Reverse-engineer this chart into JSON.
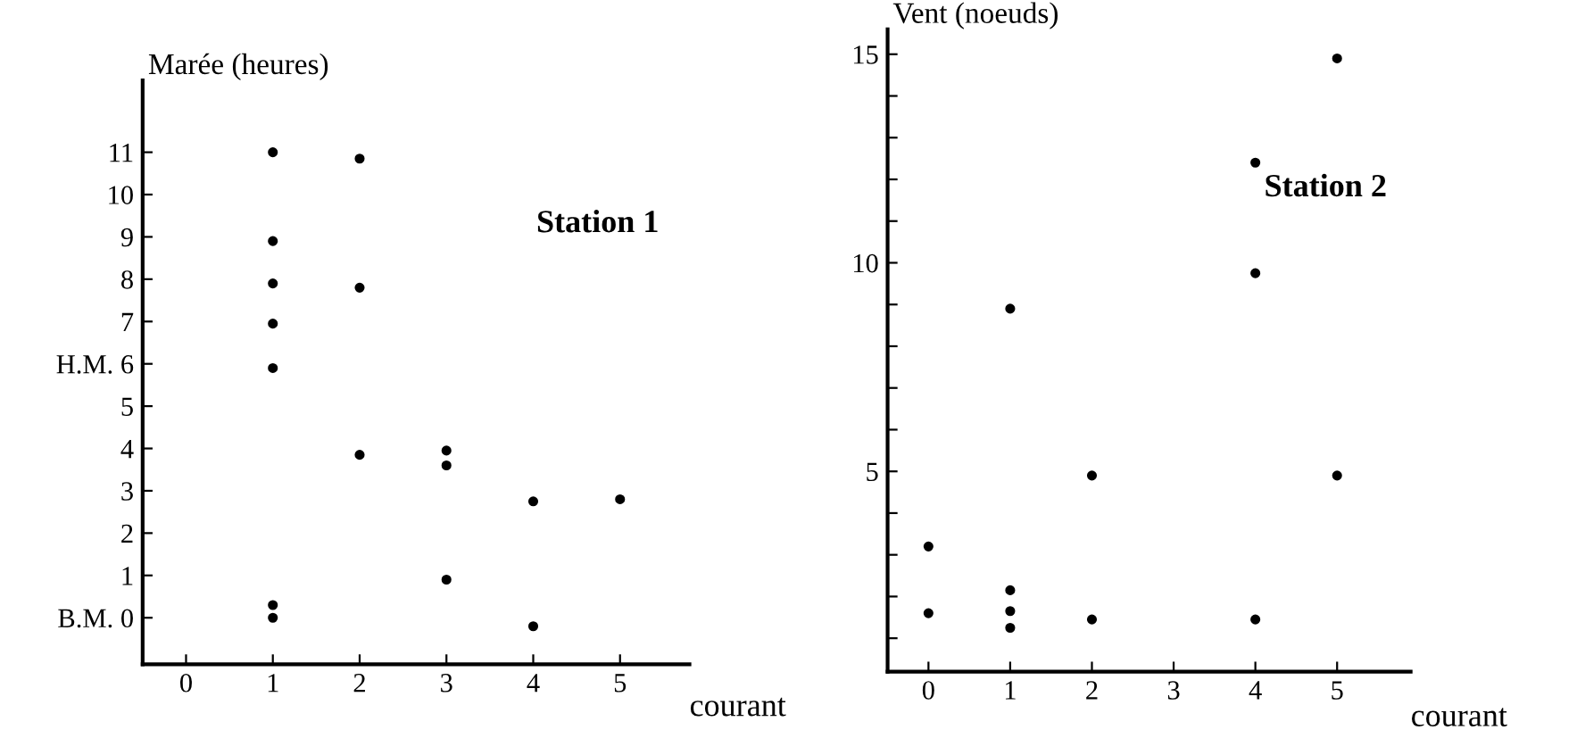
{
  "chart_data": [
    {
      "type": "scatter",
      "ylabel": "Marée (heures)",
      "xlabel": "courant",
      "annotations": [
        "Station 1"
      ],
      "marker": "circle",
      "grid": false,
      "xlim": [
        -0.5,
        5.8
      ],
      "xticks": [
        0,
        1,
        2,
        3,
        4,
        5
      ],
      "ylim": [
        -1.1,
        12.7
      ],
      "yticks": [
        {
          "value": 0,
          "label": "B.M. 0"
        },
        1,
        2,
        3,
        4,
        5,
        {
          "value": 6,
          "label": "H.M. 6"
        },
        7,
        8,
        9,
        10,
        11
      ],
      "series": [
        {
          "color": "#000000",
          "x": [
            1,
            1,
            1,
            1,
            1,
            1,
            1,
            2,
            2,
            2,
            3,
            3,
            3,
            4,
            4,
            5
          ],
          "values": [
            11,
            8.9,
            7.9,
            6.95,
            5.9,
            0.3,
            0,
            10.85,
            7.8,
            3.85,
            3.95,
            3.6,
            0.9,
            2.75,
            -0.2,
            2.8
          ]
        }
      ]
    },
    {
      "type": "scatter",
      "ylabel": "Vent (noeuds)",
      "xlabel": "courant",
      "annotations": [
        "Station 2"
      ],
      "marker": "circle",
      "grid": false,
      "xlim": [
        -0.5,
        5.9
      ],
      "xticks": [
        0,
        1,
        2,
        3,
        4,
        5
      ],
      "ylim": [
        0.2,
        15.6
      ],
      "yticks": [
        {
          "value": 1,
          "label": null
        },
        {
          "value": 2,
          "label": null
        },
        {
          "value": 3,
          "label": null
        },
        {
          "value": 4,
          "label": null
        },
        5,
        {
          "value": 6,
          "label": null
        },
        {
          "value": 7,
          "label": null
        },
        {
          "value": 8,
          "label": null
        },
        {
          "value": 9,
          "label": null
        },
        10,
        {
          "value": 11,
          "label": null
        },
        {
          "value": 12,
          "label": null
        },
        {
          "value": 13,
          "label": null
        },
        {
          "value": 14,
          "label": null
        },
        15
      ],
      "series": [
        {
          "color": "#000000",
          "x": [
            0,
            0,
            1,
            1,
            1,
            1,
            2,
            2,
            4,
            4,
            4,
            5,
            5
          ],
          "values": [
            3.2,
            1.6,
            8.9,
            2.15,
            1.65,
            1.25,
            4.9,
            1.45,
            12.4,
            9.75,
            1.45,
            14.9,
            4.9
          ]
        }
      ]
    }
  ]
}
